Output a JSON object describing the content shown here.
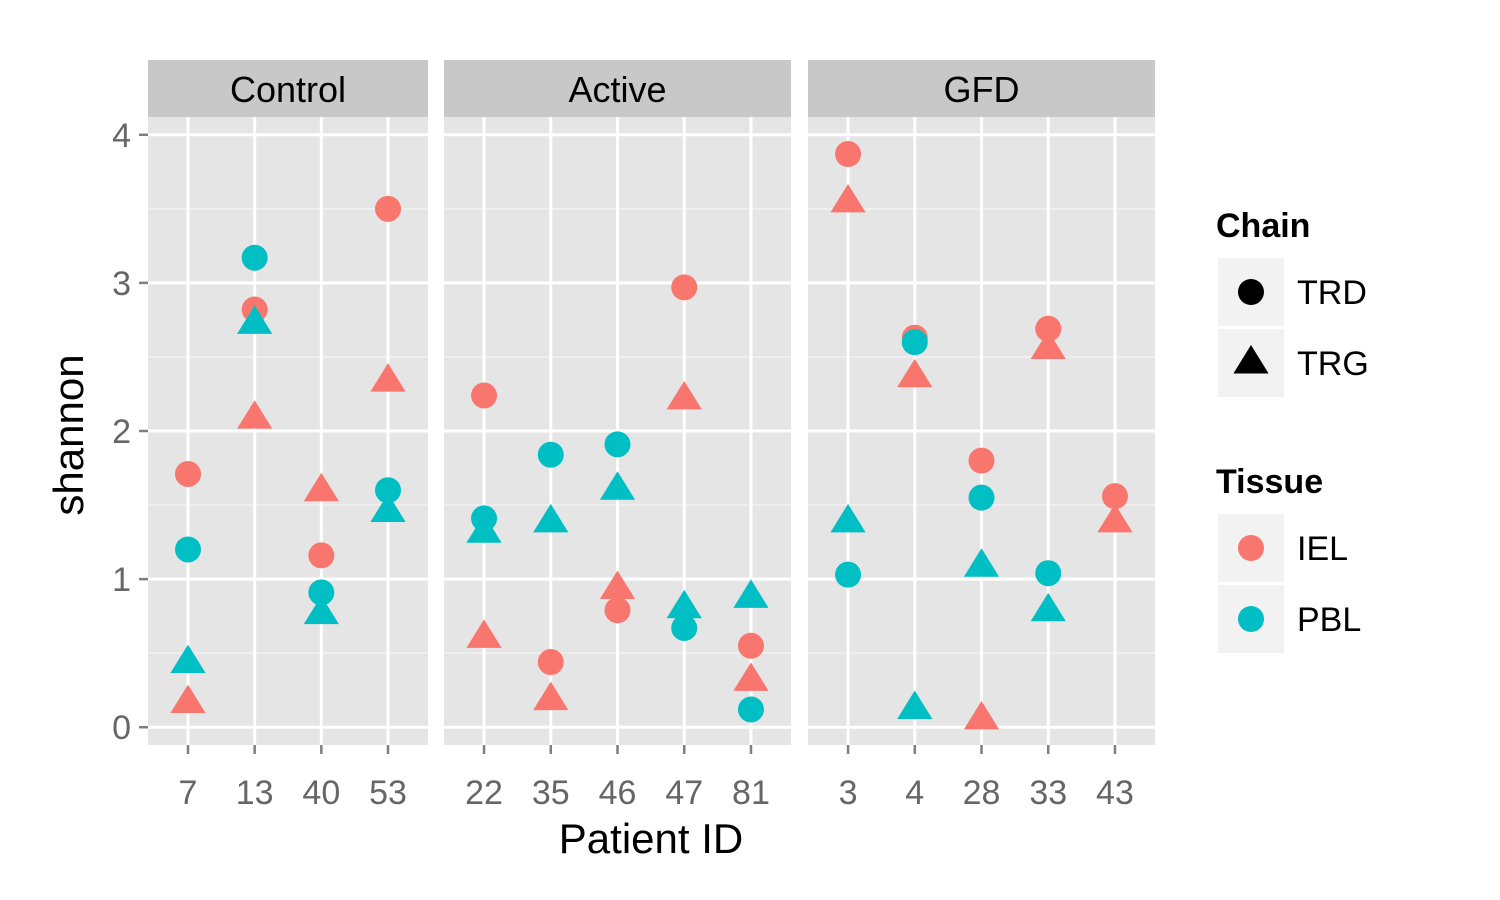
{
  "chart_data": {
    "type": "scatter",
    "xlabel": "Patient ID",
    "ylabel": "shannon",
    "ylim": [
      -0.12,
      4.12
    ],
    "y_ticks": [
      0,
      1,
      2,
      3,
      4
    ],
    "grid": true,
    "legend_placement": "right",
    "colors": {
      "IEL": "#F8766D",
      "PBL": "#00BFC4"
    },
    "panels": [
      {
        "name": "Control",
        "categories": [
          "7",
          "13",
          "40",
          "53"
        ],
        "points": [
          {
            "x": "7",
            "chain": "TRD",
            "tissue": "IEL",
            "y": 1.71
          },
          {
            "x": "7",
            "chain": "TRD",
            "tissue": "PBL",
            "y": 1.2
          },
          {
            "x": "7",
            "chain": "TRG",
            "tissue": "PBL",
            "y": 0.45
          },
          {
            "x": "7",
            "chain": "TRG",
            "tissue": "IEL",
            "y": 0.18
          },
          {
            "x": "13",
            "chain": "TRD",
            "tissue": "PBL",
            "y": 3.17
          },
          {
            "x": "13",
            "chain": "TRD",
            "tissue": "IEL",
            "y": 2.82
          },
          {
            "x": "13",
            "chain": "TRG",
            "tissue": "PBL",
            "y": 2.74
          },
          {
            "x": "13",
            "chain": "TRG",
            "tissue": "IEL",
            "y": 2.1
          },
          {
            "x": "40",
            "chain": "TRG",
            "tissue": "IEL",
            "y": 1.61
          },
          {
            "x": "40",
            "chain": "TRD",
            "tissue": "IEL",
            "y": 1.16
          },
          {
            "x": "40",
            "chain": "TRD",
            "tissue": "PBL",
            "y": 0.91
          },
          {
            "x": "40",
            "chain": "TRG",
            "tissue": "PBL",
            "y": 0.78
          },
          {
            "x": "53",
            "chain": "TRD",
            "tissue": "IEL",
            "y": 3.5
          },
          {
            "x": "53",
            "chain": "TRG",
            "tissue": "IEL",
            "y": 2.35
          },
          {
            "x": "53",
            "chain": "TRD",
            "tissue": "PBL",
            "y": 1.6
          },
          {
            "x": "53",
            "chain": "TRG",
            "tissue": "PBL",
            "y": 1.47
          }
        ]
      },
      {
        "name": "Active",
        "categories": [
          "22",
          "35",
          "46",
          "47",
          "81"
        ],
        "points": [
          {
            "x": "22",
            "chain": "TRD",
            "tissue": "IEL",
            "y": 2.24
          },
          {
            "x": "22",
            "chain": "TRD",
            "tissue": "PBL",
            "y": 1.41
          },
          {
            "x": "22",
            "chain": "TRG",
            "tissue": "PBL",
            "y": 1.33
          },
          {
            "x": "22",
            "chain": "TRG",
            "tissue": "IEL",
            "y": 0.62
          },
          {
            "x": "35",
            "chain": "TRD",
            "tissue": "PBL",
            "y": 1.84
          },
          {
            "x": "35",
            "chain": "TRG",
            "tissue": "PBL",
            "y": 1.4
          },
          {
            "x": "35",
            "chain": "TRD",
            "tissue": "IEL",
            "y": 0.44
          },
          {
            "x": "35",
            "chain": "TRG",
            "tissue": "IEL",
            "y": 0.2
          },
          {
            "x": "46",
            "chain": "TRD",
            "tissue": "PBL",
            "y": 1.91
          },
          {
            "x": "46",
            "chain": "TRG",
            "tissue": "PBL",
            "y": 1.62
          },
          {
            "x": "46",
            "chain": "TRG",
            "tissue": "IEL",
            "y": 0.95
          },
          {
            "x": "46",
            "chain": "TRD",
            "tissue": "IEL",
            "y": 0.79
          },
          {
            "x": "47",
            "chain": "TRD",
            "tissue": "IEL",
            "y": 2.97
          },
          {
            "x": "47",
            "chain": "TRG",
            "tissue": "IEL",
            "y": 2.23
          },
          {
            "x": "47",
            "chain": "TRG",
            "tissue": "PBL",
            "y": 0.82
          },
          {
            "x": "47",
            "chain": "TRD",
            "tissue": "PBL",
            "y": 0.67
          },
          {
            "x": "81",
            "chain": "TRG",
            "tissue": "PBL",
            "y": 0.89
          },
          {
            "x": "81",
            "chain": "TRD",
            "tissue": "IEL",
            "y": 0.55
          },
          {
            "x": "81",
            "chain": "TRG",
            "tissue": "IEL",
            "y": 0.33
          },
          {
            "x": "81",
            "chain": "TRD",
            "tissue": "PBL",
            "y": 0.12
          }
        ]
      },
      {
        "name": "GFD",
        "categories": [
          "3",
          "4",
          "28",
          "33",
          "43"
        ],
        "points": [
          {
            "x": "3",
            "chain": "TRD",
            "tissue": "IEL",
            "y": 3.87
          },
          {
            "x": "3",
            "chain": "TRG",
            "tissue": "IEL",
            "y": 3.56
          },
          {
            "x": "3",
            "chain": "TRG",
            "tissue": "PBL",
            "y": 1.4
          },
          {
            "x": "3",
            "chain": "TRD",
            "tissue": "PBL",
            "y": 1.03
          },
          {
            "x": "4",
            "chain": "TRD",
            "tissue": "IEL",
            "y": 2.63
          },
          {
            "x": "4",
            "chain": "TRD",
            "tissue": "PBL",
            "y": 2.6
          },
          {
            "x": "4",
            "chain": "TRG",
            "tissue": "IEL",
            "y": 2.38
          },
          {
            "x": "4",
            "chain": "TRG",
            "tissue": "PBL",
            "y": 0.14
          },
          {
            "x": "28",
            "chain": "TRD",
            "tissue": "IEL",
            "y": 1.8
          },
          {
            "x": "28",
            "chain": "TRD",
            "tissue": "PBL",
            "y": 1.55
          },
          {
            "x": "28",
            "chain": "TRG",
            "tissue": "PBL",
            "y": 1.1
          },
          {
            "x": "28",
            "chain": "TRG",
            "tissue": "IEL",
            "y": 0.07
          },
          {
            "x": "33",
            "chain": "TRD",
            "tissue": "IEL",
            "y": 2.69
          },
          {
            "x": "33",
            "chain": "TRG",
            "tissue": "IEL",
            "y": 2.57
          },
          {
            "x": "33",
            "chain": "TRD",
            "tissue": "PBL",
            "y": 1.04
          },
          {
            "x": "33",
            "chain": "TRG",
            "tissue": "PBL",
            "y": 0.8
          },
          {
            "x": "43",
            "chain": "TRD",
            "tissue": "IEL",
            "y": 1.56
          },
          {
            "x": "43",
            "chain": "TRG",
            "tissue": "IEL",
            "y": 1.4
          }
        ]
      }
    ],
    "legends": [
      {
        "title": "Chain",
        "entries": [
          {
            "label": "TRD",
            "shape": "circle",
            "color": "#000000"
          },
          {
            "label": "TRG",
            "shape": "triangle",
            "color": "#000000"
          }
        ]
      },
      {
        "title": "Tissue",
        "entries": [
          {
            "label": "IEL",
            "shape": "circle",
            "color": "#F8766D"
          },
          {
            "label": "PBL",
            "shape": "circle",
            "color": "#00BFC4"
          }
        ]
      }
    ]
  }
}
